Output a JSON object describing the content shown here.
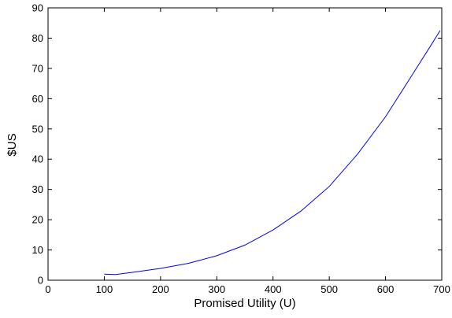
{
  "chart_data": {
    "type": "line",
    "title": "",
    "xlabel": "Promised Utility (U)",
    "ylabel": "$US",
    "xlim": [
      0,
      700
    ],
    "ylim": [
      0,
      90
    ],
    "xticks": [
      0,
      100,
      200,
      300,
      400,
      500,
      600,
      700
    ],
    "yticks": [
      0,
      10,
      20,
      30,
      40,
      50,
      60,
      70,
      80,
      90
    ],
    "grid": false,
    "legend": "none",
    "series": [
      {
        "color": "#0000ff",
        "x": [
          100,
          120,
          150,
          200,
          250,
          300,
          350,
          400,
          450,
          500,
          550,
          600,
          650,
          680,
          697
        ],
        "y": [
          2.0,
          1.9,
          2.6,
          3.9,
          5.6,
          8.1,
          11.6,
          16.6,
          22.9,
          31.0,
          41.6,
          54.0,
          68.6,
          77.4,
          82.5
        ]
      }
    ]
  }
}
